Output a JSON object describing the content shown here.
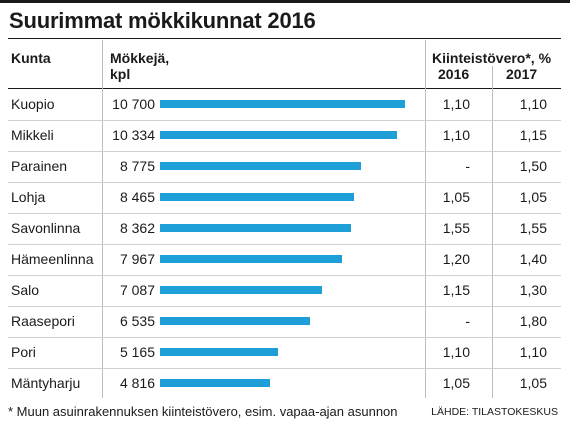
{
  "title": "Suurimmat mökkikunnat 2016",
  "columns": {
    "kunta": "Kunta",
    "mokkeja_line1": "Mökkejä,",
    "mokkeja_line2": "kpl",
    "vero": "Kiinteistövero*, %",
    "year_2016": "2016",
    "year_2017": "2017"
  },
  "chart_data": {
    "type": "bar",
    "orientation": "horizontal",
    "categories": [
      "Kuopio",
      "Mikkeli",
      "Parainen",
      "Lohja",
      "Savonlinna",
      "Hämeenlinna",
      "Salo",
      "Raasepori",
      "Pori",
      "Mäntyharju"
    ],
    "values": [
      10700,
      10334,
      8775,
      8465,
      8362,
      7967,
      7087,
      6535,
      5165,
      4816
    ],
    "value_labels": [
      "10 700",
      "10 334",
      "8 775",
      "8 465",
      "8 362",
      "7 967",
      "7 087",
      "6 535",
      "5 165",
      "4 816"
    ],
    "tax_2016": [
      "1,10",
      "1,10",
      "-",
      "1,05",
      "1,55",
      "1,20",
      "1,15",
      "-",
      "1,10",
      "1,05"
    ],
    "tax_2017": [
      "1,10",
      "1,15",
      "1,50",
      "1,05",
      "1,55",
      "1,40",
      "1,30",
      "1,80",
      "1,10",
      "1,05"
    ],
    "bar_color": "#1f9fd8"
  },
  "footnote": "* Muun asuinrakennuksen kiinteistövero, esim. vapaa-ajan asunnon",
  "source": "LÄHDE: TILASTOKESKUS"
}
